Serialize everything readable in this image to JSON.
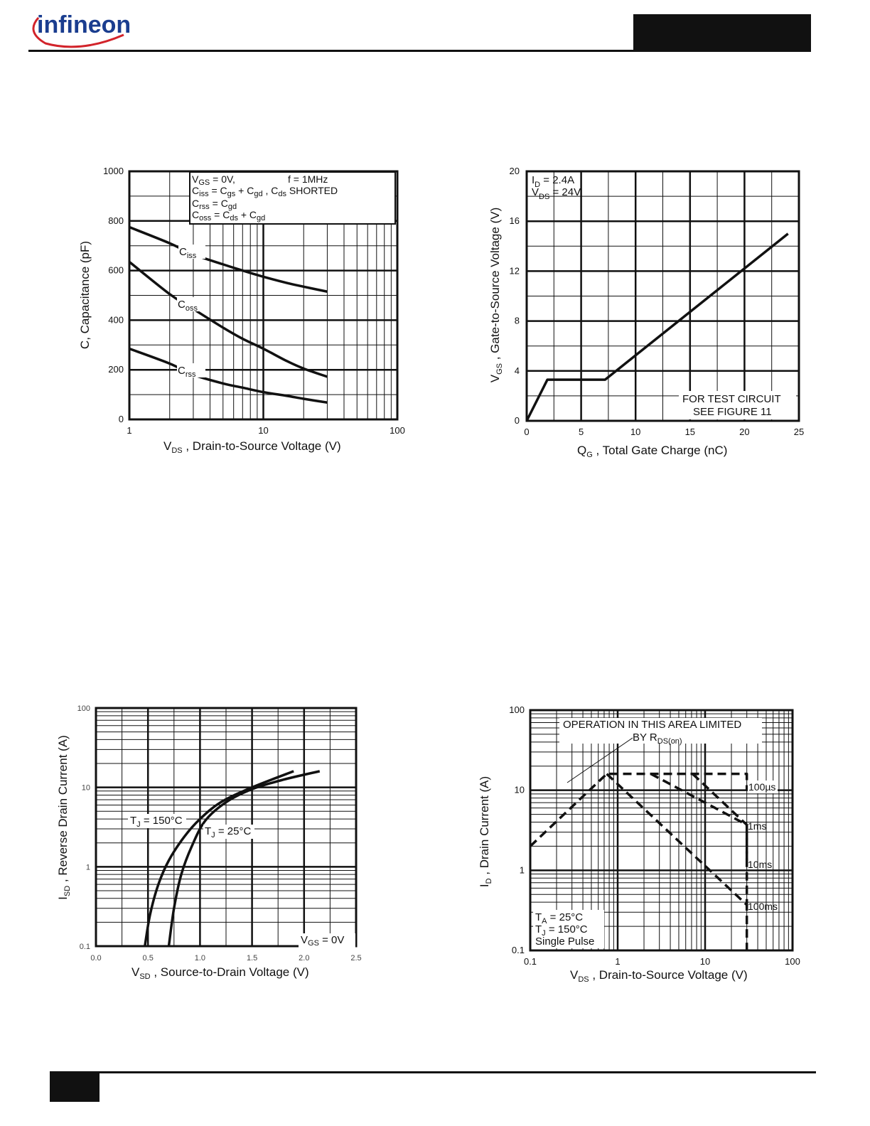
{
  "header": {
    "brand": "infineon"
  },
  "charts": {
    "capacitance": {
      "conditions": {
        "vgs": {
          "main": "V",
          "sub": "GS",
          "rest": " = 0V,"
        },
        "freq": "f = 1MHz",
        "ciss": {
          "main": "C",
          "sub": "iss",
          "rest": " = C",
          "sub2": "gs",
          "rest2": " + C",
          "sub3": "gd",
          "rest3": " ,  C",
          "sub4": "ds",
          "rest4": "  SHORTED"
        },
        "crss": {
          "main": "C",
          "sub": "rss",
          "rest": " = C",
          "sub2": "gd"
        },
        "coss": {
          "main": "C",
          "sub": "oss",
          "rest": " = C",
          "sub2": "ds",
          "rest2": " + C",
          "sub3": "gd"
        }
      },
      "curve_labels": {
        "ciss": {
          "main": "C",
          "sub": "iss"
        },
        "coss": {
          "main": "C",
          "sub": "oss"
        },
        "crss": {
          "main": "C",
          "sub": "rss"
        }
      }
    },
    "gate_charge": {
      "id": {
        "main": "I",
        "sub": "D",
        "rest": " = 2.4A"
      },
      "vds": {
        "main": "V",
        "sub": "DS",
        "rest": " = 24V"
      },
      "note1": "FOR TEST CIRCUIT",
      "note2": "SEE FIGURE 11"
    },
    "diode": {
      "tj150": {
        "main": "T",
        "sub": "J",
        "rest": " = 150°C"
      },
      "tj25": {
        "main": "T",
        "sub": "J",
        "rest": " = 25°C"
      },
      "vgs": {
        "main": "V",
        "sub": "GS",
        "rest": " = 0V"
      }
    },
    "soa": {
      "note1": "OPERATION IN THIS AREA LIMITED",
      "note2": {
        "main": "BY R",
        "sub": "DS(on)"
      },
      "limits": [
        "100µs",
        "1ms",
        "10ms",
        "100ms"
      ],
      "ta": {
        "main": "T",
        "sub": "A",
        "rest": "   = 25°C"
      },
      "tj": {
        "main": "T",
        "sub": "J",
        "rest": "   = 150°C"
      },
      "pulse": "Single Pulse"
    }
  },
  "chart_data": [
    {
      "type": "line",
      "xscale": "log",
      "xlim": [
        1,
        100
      ],
      "ylim": [
        0,
        1000
      ],
      "xticks": [
        "1",
        "10",
        "100"
      ],
      "yticks": [
        "0",
        "200",
        "400",
        "600",
        "800",
        "1000"
      ],
      "xlabel": {
        "main": "V",
        "sub": "DS",
        "rest": " , Drain-to-Source Voltage (V)"
      },
      "ylabel": "C, Capacitance (pF)",
      "grid": true,
      "series": [
        {
          "name": "Ciss",
          "x": [
            1,
            2,
            3,
            5,
            7,
            10,
            15,
            20,
            30
          ],
          "y": [
            775,
            710,
            665,
            625,
            600,
            575,
            550,
            535,
            515
          ]
        },
        {
          "name": "Coss",
          "x": [
            1,
            2,
            3,
            5,
            7,
            10,
            15,
            20,
            30
          ],
          "y": [
            635,
            505,
            445,
            370,
            325,
            285,
            235,
            205,
            172
          ]
        },
        {
          "name": "Crss",
          "x": [
            1,
            2,
            3,
            5,
            7,
            10,
            15,
            20,
            30
          ],
          "y": [
            285,
            225,
            180,
            145,
            128,
            110,
            95,
            83,
            68
          ]
        }
      ]
    },
    {
      "type": "line",
      "xlim": [
        0,
        25
      ],
      "ylim": [
        0,
        20
      ],
      "xticks": [
        "0",
        "5",
        "10",
        "15",
        "20",
        "25"
      ],
      "yticks": [
        "0",
        "4",
        "8",
        "12",
        "16",
        "20"
      ],
      "xlabel": {
        "main": "Q",
        "sub": "G",
        "rest": " , Total Gate Charge (nC)"
      },
      "ylabel": {
        "main": "V",
        "sub": "GS",
        "rest": " , Gate-to-Source Voltage (V)"
      },
      "grid": true,
      "series": [
        {
          "x": [
            0,
            1.9,
            7.2,
            24
          ],
          "y": [
            0,
            3.3,
            3.3,
            15
          ]
        }
      ]
    },
    {
      "type": "line",
      "yscale": "log",
      "xlim": [
        0,
        2.5
      ],
      "ylim": [
        0.1,
        100
      ],
      "xticks": [
        "0.0",
        "0.5",
        "1.0",
        "1.5",
        "2.0",
        "2.5"
      ],
      "yticks": [
        "0.1",
        "1",
        "10",
        "100"
      ],
      "xlabel": {
        "main": "V",
        "sub": "SD",
        "rest": " , Source-to-Drain Voltage (V)"
      },
      "ylabel": {
        "main": "I",
        "sub": "SD",
        "rest": " , Reverse Drain Current (A)"
      },
      "grid": true,
      "series": [
        {
          "name": "TJ = 150°C",
          "x": [
            0.47,
            0.52,
            0.6,
            0.7,
            0.85,
            1.0,
            1.2,
            1.5,
            1.9
          ],
          "y": [
            0.1,
            0.25,
            0.6,
            1.2,
            2.4,
            4.0,
            6.5,
            10,
            16
          ]
        },
        {
          "name": "TJ = 25°C",
          "x": [
            0.7,
            0.75,
            0.82,
            0.92,
            1.05,
            1.25,
            1.5,
            1.8,
            2.15
          ],
          "y": [
            0.1,
            0.3,
            0.8,
            1.8,
            3.8,
            6.5,
            9.5,
            12.5,
            16
          ]
        }
      ]
    },
    {
      "type": "line",
      "xscale": "log",
      "yscale": "log",
      "xlim": [
        0.1,
        100
      ],
      "ylim": [
        0.1,
        100
      ],
      "xticks": [
        "0.1",
        "1",
        "10",
        "100"
      ],
      "yticks": [
        "0.1",
        "1",
        "10",
        "100"
      ],
      "xlabel": {
        "main": "V",
        "sub": "DS",
        "rest": " , Drain-to-Source Voltage (V)"
      },
      "ylabel": {
        "main": "I",
        "sub": "D",
        "rest": " , Drain Current (A)"
      },
      "grid": true,
      "series": [
        {
          "name": "100µs",
          "x": [
            0.1,
            0.75,
            30,
            30
          ],
          "y": [
            2,
            16,
            16,
            10
          ]
        },
        {
          "name": "1ms",
          "x": [
            2.4,
            30,
            30
          ],
          "y": [
            16,
            3.7,
            1.2
          ]
        },
        {
          "name": "10ms",
          "x": [
            7.2,
            30,
            30
          ],
          "y": [
            16,
            3.7,
            0.35
          ]
        },
        {
          "name": "100ms",
          "x": [
            0.75,
            30,
            30
          ],
          "y": [
            16,
            0.37,
            0.1
          ]
        }
      ]
    }
  ]
}
